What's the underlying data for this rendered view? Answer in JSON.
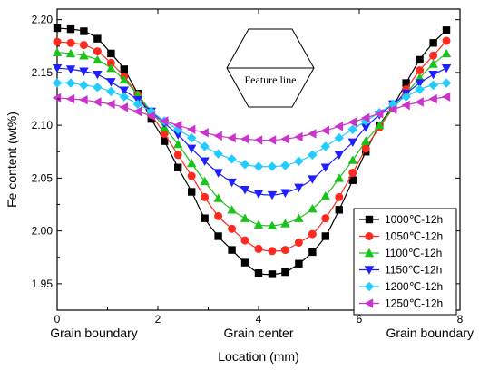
{
  "chart_data": {
    "type": "line",
    "xlabel": "Location (mm)",
    "ylabel": "Fe content (wt%)",
    "xlim": [
      0,
      8
    ],
    "ylim": [
      1.925,
      2.21
    ],
    "x_ticks": [
      0,
      2,
      4,
      6,
      8
    ],
    "x_tick_labels": [
      "0",
      "2",
      "4",
      "6",
      "8"
    ],
    "y_ticks": [
      1.95,
      2.0,
      2.05,
      2.1,
      2.15,
      2.2
    ],
    "y_tick_labels": [
      "1.95",
      "2.00",
      "2.05",
      "2.10",
      "2.15",
      "2.20"
    ],
    "grid": false,
    "legend_position": "lower-right",
    "region_labels": [
      {
        "text": "Grain boundary",
        "at_x": 0.73
      },
      {
        "text": "Grain center",
        "at_x": 4
      },
      {
        "text": "Grain boundary",
        "at_x": 7.4
      }
    ],
    "inset": {
      "shape": "hexagon",
      "label": "Feature line"
    },
    "x": [
      0,
      0.27,
      0.53,
      0.8,
      1.07,
      1.33,
      1.6,
      1.87,
      2.13,
      2.4,
      2.67,
      2.93,
      3.2,
      3.47,
      3.73,
      4.0,
      4.27,
      4.53,
      4.8,
      5.07,
      5.33,
      5.6,
      5.87,
      6.13,
      6.4,
      6.67,
      6.93,
      7.2,
      7.47,
      7.73
    ],
    "series": [
      {
        "name": "1000℃-12h",
        "color": "#000000",
        "marker": "square",
        "values": [
          2.192,
          2.191,
          2.189,
          2.182,
          2.168,
          2.153,
          2.13,
          2.106,
          2.085,
          2.06,
          2.037,
          2.012,
          1.995,
          1.982,
          1.97,
          1.96,
          1.959,
          1.961,
          1.969,
          1.98,
          1.995,
          2.02,
          2.048,
          2.075,
          2.1,
          2.118,
          2.14,
          2.162,
          2.178,
          2.19
        ]
      },
      {
        "name": "1050℃-12h",
        "color": "#ff2a1f",
        "marker": "circle",
        "values": [
          2.179,
          2.178,
          2.176,
          2.17,
          2.159,
          2.146,
          2.129,
          2.11,
          2.092,
          2.072,
          2.052,
          2.032,
          2.014,
          2.002,
          1.991,
          1.983,
          1.981,
          1.982,
          1.989,
          1.997,
          2.012,
          2.032,
          2.055,
          2.078,
          2.098,
          2.116,
          2.134,
          2.152,
          2.166,
          2.18
        ]
      },
      {
        "name": "1100℃-12h",
        "color": "#19c319",
        "marker": "triangle-up",
        "values": [
          2.169,
          2.168,
          2.166,
          2.162,
          2.154,
          2.143,
          2.129,
          2.113,
          2.098,
          2.082,
          2.064,
          2.047,
          2.031,
          2.02,
          2.012,
          2.006,
          2.005,
          2.007,
          2.012,
          2.021,
          2.033,
          2.05,
          2.067,
          2.085,
          2.1,
          2.116,
          2.13,
          2.145,
          2.158,
          2.168
        ]
      },
      {
        "name": "1150℃-12h",
        "color": "#1f1fff",
        "marker": "triangle-down",
        "values": [
          2.154,
          2.153,
          2.151,
          2.148,
          2.141,
          2.133,
          2.124,
          2.113,
          2.102,
          2.091,
          2.078,
          2.066,
          2.055,
          2.046,
          2.039,
          2.035,
          2.034,
          2.036,
          2.041,
          2.049,
          2.06,
          2.072,
          2.084,
          2.098,
          2.11,
          2.12,
          2.13,
          2.14,
          2.148,
          2.154
        ]
      },
      {
        "name": "1200℃-12h",
        "color": "#22ccff",
        "marker": "diamond",
        "values": [
          2.14,
          2.14,
          2.138,
          2.136,
          2.132,
          2.127,
          2.12,
          2.113,
          2.104,
          2.096,
          2.088,
          2.08,
          2.073,
          2.068,
          2.063,
          2.061,
          2.061,
          2.062,
          2.066,
          2.072,
          2.08,
          2.088,
          2.096,
          2.104,
          2.112,
          2.12,
          2.127,
          2.134,
          2.138,
          2.14
        ]
      },
      {
        "name": "1250℃-12h",
        "color": "#cc33cc",
        "marker": "triangle-left",
        "values": [
          2.126,
          2.125,
          2.124,
          2.122,
          2.12,
          2.117,
          2.113,
          2.109,
          2.104,
          2.1,
          2.096,
          2.093,
          2.09,
          2.088,
          2.087,
          2.086,
          2.086,
          2.087,
          2.089,
          2.092,
          2.095,
          2.099,
          2.103,
          2.107,
          2.111,
          2.115,
          2.119,
          2.122,
          2.125,
          2.127
        ]
      }
    ]
  }
}
